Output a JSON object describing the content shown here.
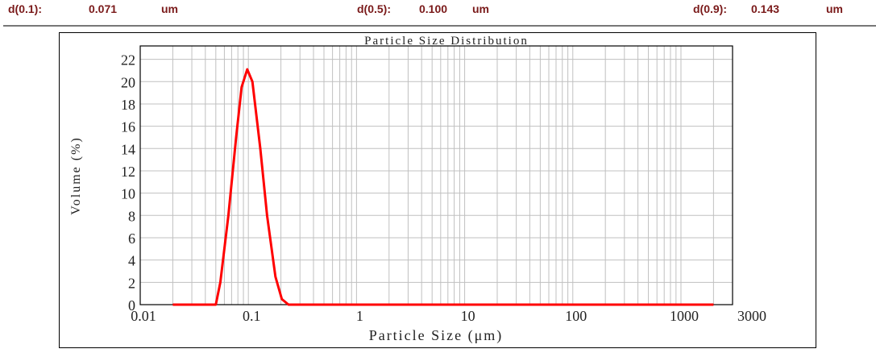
{
  "stats": [
    {
      "label": "d(0.1):",
      "value": "0.071",
      "unit": "um"
    },
    {
      "label": "d(0.5):",
      "value": "0.100",
      "unit": "um"
    },
    {
      "label": "d(0.9):",
      "value": "0.143",
      "unit": "um"
    }
  ],
  "colors": {
    "stat_text": "#7a1a1a",
    "curve": "#ff0000",
    "grid": "#c0c0c0"
  },
  "chart_data": {
    "type": "line",
    "title": "Particle Size Distribution",
    "xlabel": "Particle Size (μm)",
    "ylabel": "Volume (%)",
    "xscale": "log",
    "xlim": [
      0.01,
      3000
    ],
    "ylim": [
      0,
      23.2
    ],
    "grid": true,
    "xticks": [
      0.01,
      0.1,
      1,
      10,
      100,
      1000,
      3000
    ],
    "xtick_labels": [
      "0.01",
      "0.1",
      "1",
      "10",
      "100",
      "1000",
      "3000"
    ],
    "yticks": [
      0,
      2,
      4,
      6,
      8,
      10,
      12,
      14,
      16,
      18,
      20,
      22
    ],
    "ytick_labels": [
      "0",
      "2",
      "4",
      "6",
      "8",
      "10",
      "12",
      "14",
      "16",
      "18",
      "20",
      "22"
    ],
    "series": [
      {
        "x": [
          0.02,
          0.05,
          0.055,
          0.0653,
          0.077,
          0.0866,
          0.0976,
          0.109,
          0.129,
          0.149,
          0.178,
          0.204,
          0.235,
          2000
        ],
        "y": [
          0,
          0,
          2,
          8,
          15,
          19.5,
          21.1,
          20,
          14,
          8,
          2.5,
          0.5,
          0,
          0
        ]
      }
    ]
  }
}
